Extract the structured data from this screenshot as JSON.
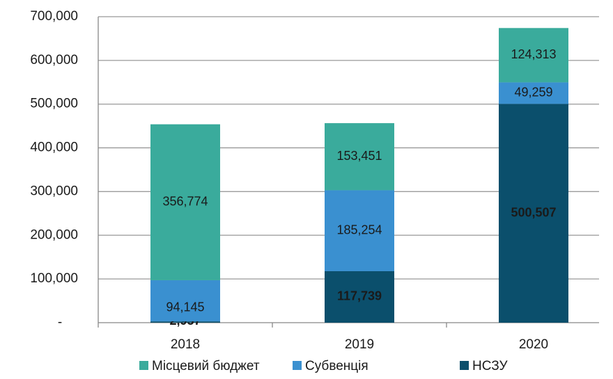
{
  "chart_data": {
    "type": "stacked_bar",
    "categories": [
      "2018",
      "2019",
      "2020"
    ],
    "series": [
      {
        "name": "НСЗУ",
        "color": "#0b4f6c",
        "values": [
          2957,
          117739,
          500507
        ],
        "value_labels": [
          "2,957",
          "117,739",
          "500,507"
        ]
      },
      {
        "name": "Субвенція",
        "color": "#3a90d0",
        "values": [
          94145,
          185254,
          49259
        ],
        "value_labels": [
          "94,145",
          "185,254",
          "49,259"
        ]
      },
      {
        "name": "Місцевий бюджет",
        "color": "#3aab9c",
        "values": [
          356774,
          153451,
          124313
        ],
        "value_labels": [
          "356,774",
          "153,451",
          "124,313"
        ]
      }
    ],
    "legend_order": [
      "Місцевий бюджет",
      "Субвенція",
      "НСЗУ"
    ],
    "ylim": [
      0,
      700000
    ],
    "yticks": [
      {
        "value": 0,
        "label": "-"
      },
      {
        "value": 100000,
        "label": "100,000"
      },
      {
        "value": 200000,
        "label": "200,000"
      },
      {
        "value": 300000,
        "label": "300,000"
      },
      {
        "value": 400000,
        "label": "400,000"
      },
      {
        "value": 500000,
        "label": "500,000"
      },
      {
        "value": 600000,
        "label": "600,000"
      },
      {
        "value": 700000,
        "label": "700,000"
      }
    ],
    "grid": true
  }
}
